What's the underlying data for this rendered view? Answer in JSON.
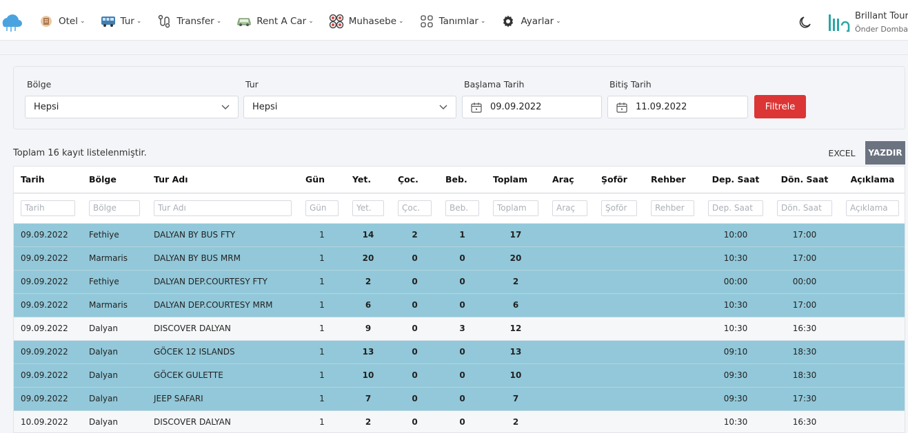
{
  "nav": {
    "items": [
      {
        "label": "Otel",
        "icon": "hotel-icon"
      },
      {
        "label": "Tur",
        "icon": "bus-icon"
      },
      {
        "label": "Transfer",
        "icon": "route-icon"
      },
      {
        "label": "Rent A Car",
        "icon": "car-icon"
      },
      {
        "label": "Muhasebe",
        "icon": "accounting-icon"
      },
      {
        "label": "Tanımlar",
        "icon": "grid-icon"
      },
      {
        "label": "Ayarlar",
        "icon": "gear-icon"
      }
    ],
    "brand_name": "Brillant Tours",
    "user_name": "Önder Dombayci"
  },
  "filters": {
    "region_label": "Bölge",
    "region_value": "Hepsi",
    "tour_label": "Tur",
    "tour_value": "Hepsi",
    "start_label": "Başlama Tarih",
    "start_value": "09.09.2022",
    "end_label": "Bitiş Tarih",
    "end_value": "11.09.2022",
    "filter_button": "Filtrele"
  },
  "summary": {
    "count_text": "Toplam 16 kayıt listelenmiştir.",
    "excel_button": "EXCEL",
    "print_button": "YAZDIR"
  },
  "table": {
    "columns": [
      "Tarih",
      "Bölge",
      "Tur Adı",
      "Gün",
      "Yet.",
      "Çoc.",
      "Beb.",
      "Toplam",
      "Araç",
      "Şoför",
      "Rehber",
      "Dep. Saat",
      "Dön. Saat",
      "Açıklama"
    ],
    "rows": [
      {
        "tarih": "09.09.2022",
        "bolge": "Fethiye",
        "tur": "DALYAN BY BUS FTY",
        "gun": "1",
        "yet": "14",
        "coc": "2",
        "beb": "1",
        "toplam": "17",
        "arac": "",
        "sofor": "",
        "rehber": "",
        "dep": "10:00",
        "don": "17:00",
        "aciklama": "",
        "style": "blue"
      },
      {
        "tarih": "09.09.2022",
        "bolge": "Marmaris",
        "tur": "DALYAN BY BUS MRM",
        "gun": "1",
        "yet": "20",
        "coc": "0",
        "beb": "0",
        "toplam": "20",
        "arac": "",
        "sofor": "",
        "rehber": "",
        "dep": "10:30",
        "don": "17:00",
        "aciklama": "",
        "style": "blue"
      },
      {
        "tarih": "09.09.2022",
        "bolge": "Fethiye",
        "tur": "DALYAN DEP.COURTESY FTY",
        "gun": "1",
        "yet": "2",
        "coc": "0",
        "beb": "0",
        "toplam": "2",
        "arac": "",
        "sofor": "",
        "rehber": "",
        "dep": "00:00",
        "don": "00:00",
        "aciklama": "",
        "style": "blue"
      },
      {
        "tarih": "09.09.2022",
        "bolge": "Marmaris",
        "tur": "DALYAN DEP.COURTESY MRM",
        "gun": "1",
        "yet": "6",
        "coc": "0",
        "beb": "0",
        "toplam": "6",
        "arac": "",
        "sofor": "",
        "rehber": "",
        "dep": "10:30",
        "don": "17:00",
        "aciklama": "",
        "style": "blue"
      },
      {
        "tarih": "09.09.2022",
        "bolge": "Dalyan",
        "tur": "DISCOVER DALYAN",
        "gun": "1",
        "yet": "9",
        "coc": "0",
        "beb": "3",
        "toplam": "12",
        "arac": "",
        "sofor": "",
        "rehber": "",
        "dep": "10:30",
        "don": "16:30",
        "aciklama": "",
        "style": "white"
      },
      {
        "tarih": "09.09.2022",
        "bolge": "Dalyan",
        "tur": "GÖCEK 12 ISLANDS",
        "gun": "1",
        "yet": "13",
        "coc": "0",
        "beb": "0",
        "toplam": "13",
        "arac": "",
        "sofor": "",
        "rehber": "",
        "dep": "09:10",
        "don": "18:30",
        "aciklama": "",
        "style": "blue"
      },
      {
        "tarih": "09.09.2022",
        "bolge": "Dalyan",
        "tur": "GÖCEK GULETTE",
        "gun": "1",
        "yet": "10",
        "coc": "0",
        "beb": "0",
        "toplam": "10",
        "arac": "",
        "sofor": "",
        "rehber": "",
        "dep": "09:30",
        "don": "18:30",
        "aciklama": "",
        "style": "blue"
      },
      {
        "tarih": "09.09.2022",
        "bolge": "Dalyan",
        "tur": "JEEP SAFARI",
        "gun": "1",
        "yet": "7",
        "coc": "0",
        "beb": "0",
        "toplam": "7",
        "arac": "",
        "sofor": "",
        "rehber": "",
        "dep": "09:30",
        "don": "17:30",
        "aciklama": "",
        "style": "blue"
      },
      {
        "tarih": "10.09.2022",
        "bolge": "Dalyan",
        "tur": "DISCOVER DALYAN",
        "gun": "1",
        "yet": "2",
        "coc": "0",
        "beb": "0",
        "toplam": "2",
        "arac": "",
        "sofor": "",
        "rehber": "",
        "dep": "10:30",
        "don": "16:30",
        "aciklama": "",
        "style": "white"
      }
    ]
  },
  "colors": {
    "row_highlight": "#92c8d9",
    "filter_button": "#dc3535",
    "print_button": "#6b7280"
  }
}
